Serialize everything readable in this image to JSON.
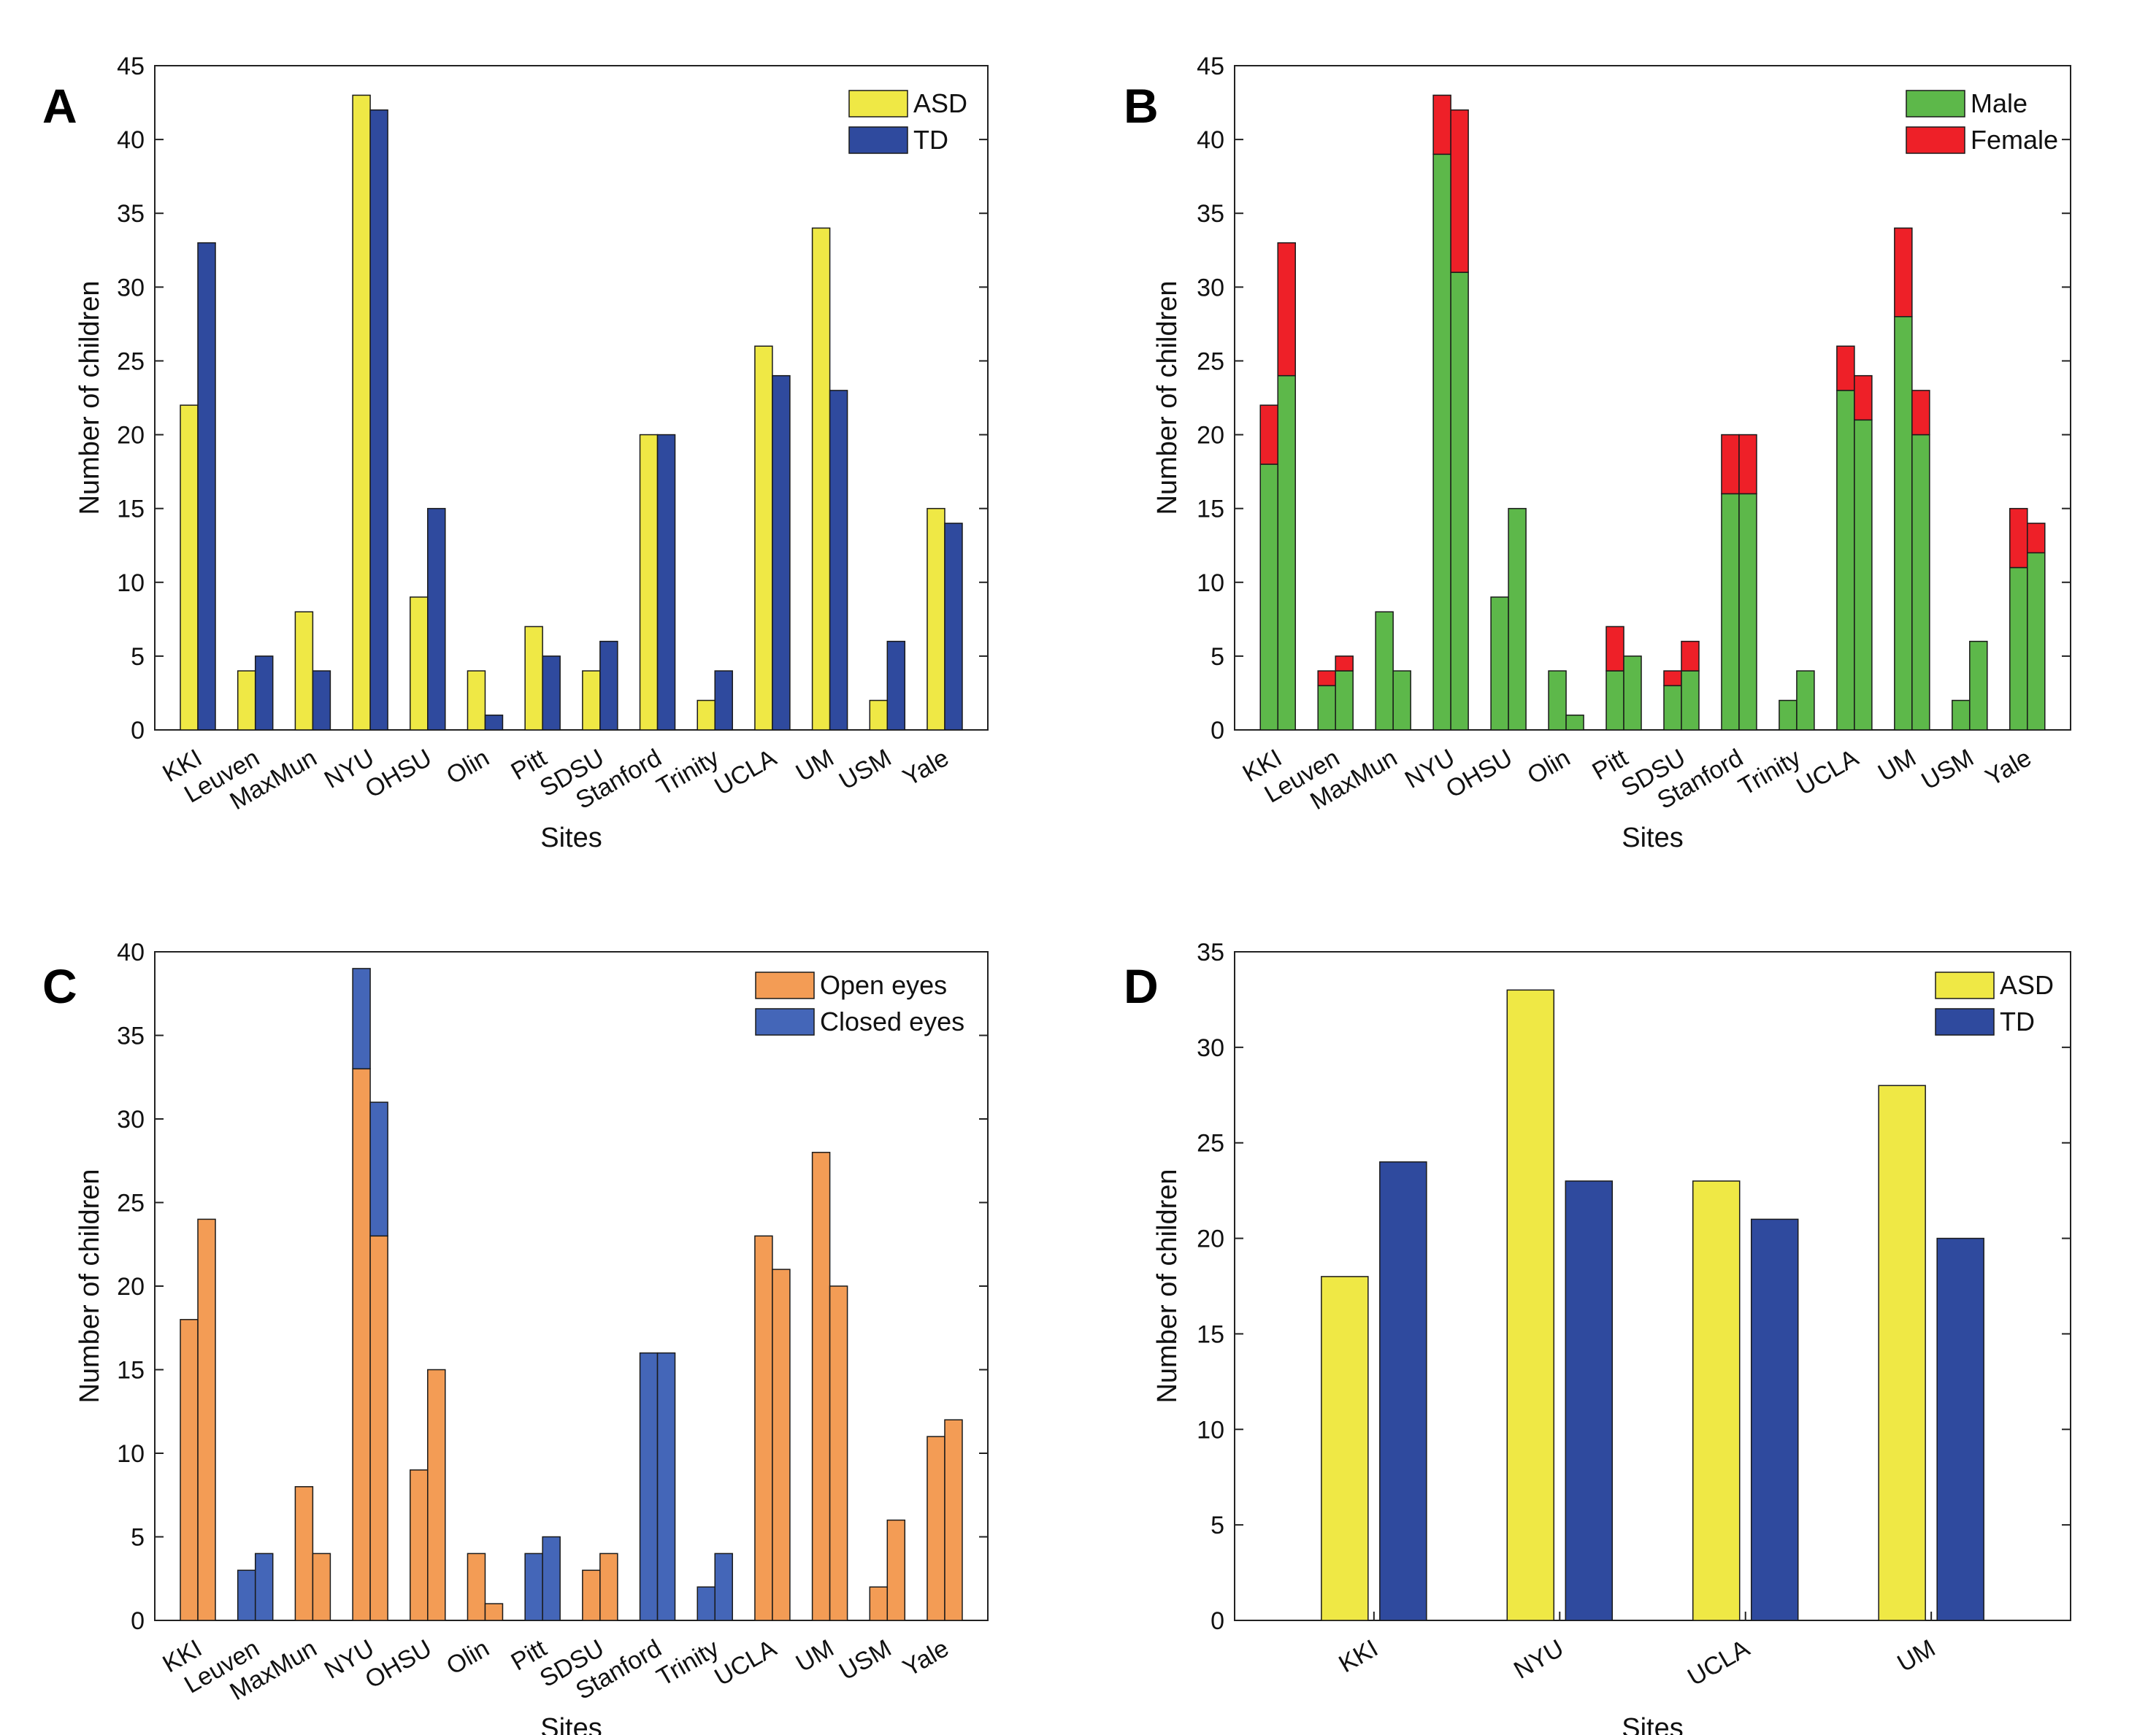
{
  "figure": {
    "panels": [
      {
        "letter": "A"
      },
      {
        "letter": "B"
      },
      {
        "letter": "C"
      },
      {
        "letter": "D"
      }
    ]
  },
  "chart_data": [
    {
      "panel": "A",
      "type": "bar",
      "mode": "grouped",
      "xlabel": "Sites",
      "ylabel": "Number of children",
      "ylim": [
        0,
        45
      ],
      "yticks": [
        0,
        5,
        10,
        15,
        20,
        25,
        30,
        35,
        40,
        45
      ],
      "categories": [
        "KKI",
        "Leuven",
        "MaxMun",
        "NYU",
        "OHSU",
        "Olin",
        "Pitt",
        "SDSU",
        "Stanford",
        "Trinity",
        "UCLA",
        "UM",
        "USM",
        "Yale"
      ],
      "series": [
        {
          "name": "ASD",
          "color": "#EFE845",
          "values": [
            22,
            4,
            8,
            43,
            9,
            4,
            7,
            4,
            20,
            2,
            26,
            34,
            2,
            15
          ]
        },
        {
          "name": "TD",
          "color": "#2F4A9E",
          "values": [
            33,
            5,
            4,
            42,
            15,
            1,
            5,
            6,
            20,
            4,
            24,
            23,
            6,
            14
          ]
        }
      ],
      "legend": {
        "position": "top-right",
        "entries": [
          "ASD",
          "TD"
        ]
      }
    },
    {
      "panel": "B",
      "type": "bar",
      "mode": "grouped-stacked",
      "xlabel": "Sites",
      "ylabel": "Number of children",
      "ylim": [
        0,
        45
      ],
      "yticks": [
        0,
        5,
        10,
        15,
        20,
        25,
        30,
        35,
        40,
        45
      ],
      "categories": [
        "KKI",
        "Leuven",
        "MaxMun",
        "NYU",
        "OHSU",
        "Olin",
        "Pitt",
        "SDSU",
        "Stanford",
        "Trinity",
        "UCLA",
        "UM",
        "USM",
        "Yale"
      ],
      "groups": [
        "ASD",
        "TD"
      ],
      "stacks": [
        {
          "name": "Male",
          "color": "#5DB84A",
          "values": [
            [
              18,
              24
            ],
            [
              3,
              4
            ],
            [
              8,
              4
            ],
            [
              39,
              31
            ],
            [
              9,
              15
            ],
            [
              4,
              1
            ],
            [
              4,
              5
            ],
            [
              3,
              4
            ],
            [
              16,
              16
            ],
            [
              2,
              4
            ],
            [
              23,
              21
            ],
            [
              28,
              20
            ],
            [
              2,
              6
            ],
            [
              11,
              12
            ]
          ]
        },
        {
          "name": "Female",
          "color": "#EE2028",
          "values": [
            [
              4,
              9
            ],
            [
              1,
              1
            ],
            [
              0,
              0
            ],
            [
              4,
              11
            ],
            [
              0,
              0
            ],
            [
              0,
              0
            ],
            [
              3,
              0
            ],
            [
              1,
              2
            ],
            [
              4,
              4
            ],
            [
              0,
              0
            ],
            [
              3,
              3
            ],
            [
              6,
              3
            ],
            [
              0,
              0
            ],
            [
              4,
              2
            ]
          ]
        }
      ],
      "legend": {
        "position": "top-right",
        "entries": [
          "Male",
          "Female"
        ]
      }
    },
    {
      "panel": "C",
      "type": "bar",
      "mode": "grouped-stacked",
      "xlabel": "Sites",
      "ylabel": "Number of children",
      "ylim": [
        0,
        40
      ],
      "yticks": [
        0,
        5,
        10,
        15,
        20,
        25,
        30,
        35,
        40
      ],
      "categories": [
        "KKI",
        "Leuven",
        "MaxMun",
        "NYU",
        "OHSU",
        "Olin",
        "Pitt",
        "SDSU",
        "Stanford",
        "Trinity",
        "UCLA",
        "UM",
        "USM",
        "Yale"
      ],
      "groups": [
        "ASD",
        "TD"
      ],
      "stacks": [
        {
          "name": "Open eyes",
          "color": "#F39C55",
          "values": [
            [
              18,
              24
            ],
            [
              0,
              0
            ],
            [
              8,
              4
            ],
            [
              33,
              23
            ],
            [
              9,
              15
            ],
            [
              4,
              1
            ],
            [
              0,
              0
            ],
            [
              3,
              4
            ],
            [
              0,
              0
            ],
            [
              0,
              0
            ],
            [
              23,
              21
            ],
            [
              28,
              20
            ],
            [
              2,
              6
            ],
            [
              11,
              12
            ]
          ]
        },
        {
          "name": "Closed eyes",
          "color": "#4466B8",
          "values": [
            [
              0,
              0
            ],
            [
              3,
              4
            ],
            [
              0,
              0
            ],
            [
              6,
              8
            ],
            [
              0,
              0
            ],
            [
              0,
              0
            ],
            [
              4,
              5
            ],
            [
              0,
              0
            ],
            [
              16,
              16
            ],
            [
              2,
              4
            ],
            [
              0,
              0
            ],
            [
              0,
              0
            ],
            [
              0,
              0
            ],
            [
              0,
              0
            ]
          ]
        }
      ],
      "legend": {
        "position": "top-right",
        "entries": [
          "Open eyes",
          "Closed eyes"
        ]
      }
    },
    {
      "panel": "D",
      "type": "bar",
      "mode": "grouped",
      "xlabel": "Sites",
      "ylabel": "Number of children",
      "ylim": [
        0,
        35
      ],
      "yticks": [
        0,
        5,
        10,
        15,
        20,
        25,
        30,
        35
      ],
      "categories": [
        "KKI",
        "NYU",
        "UCLA",
        "UM"
      ],
      "series": [
        {
          "name": "ASD",
          "color": "#EFE845",
          "values": [
            18,
            33,
            23,
            28
          ]
        },
        {
          "name": "TD",
          "color": "#2F4A9E",
          "values": [
            24,
            23,
            21,
            20
          ]
        }
      ],
      "legend": {
        "position": "top-right",
        "entries": [
          "ASD",
          "TD"
        ]
      }
    }
  ]
}
